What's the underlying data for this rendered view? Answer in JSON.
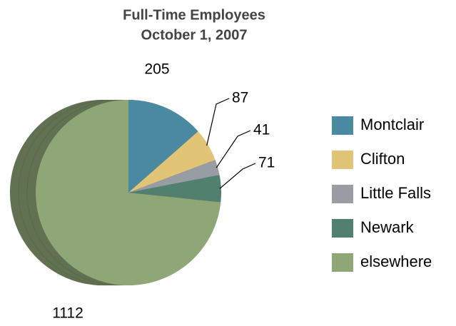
{
  "chart_data": {
    "type": "pie",
    "title": "Full-Time Employees",
    "subtitle": "October 1, 2007",
    "categories": [
      "Montclair",
      "Clifton",
      "Little Falls",
      "Newark",
      "elsewhere"
    ],
    "values": [
      205,
      87,
      41,
      71,
      1112
    ],
    "colors": [
      "#4a89a0",
      "#e1c475",
      "#979da3",
      "#52806f",
      "#8fa677"
    ],
    "legend": "right"
  }
}
